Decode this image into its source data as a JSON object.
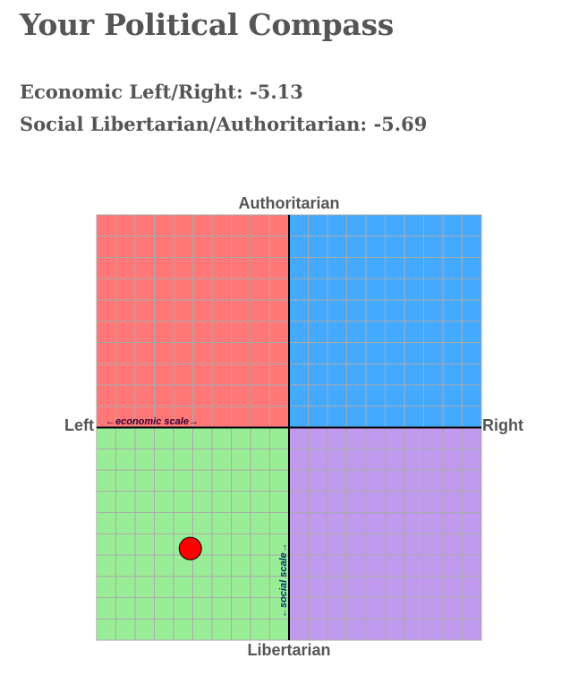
{
  "page": {
    "title": "Your Political Compass",
    "economic_label": "Economic Left/Right: -5.13",
    "social_label": "Social Libertarian/Authoritarian: -5.69"
  },
  "chart_data": {
    "type": "scatter",
    "title": "",
    "axes": {
      "top": "Authoritarian",
      "bottom": "Libertarian",
      "left": "Left",
      "right": "Right"
    },
    "economic_scale_label": "←economic scale→",
    "social_scale_label": "←social scale→",
    "xlim": [
      -10,
      10
    ],
    "ylim": [
      -10,
      10
    ],
    "grid": true,
    "grid_divisions": 20,
    "quadrants": {
      "authoritarian_left": "#ff7777",
      "authoritarian_right": "#44aaff",
      "libertarian_left": "#9aed97",
      "libertarian_right": "#c09aec"
    },
    "grid_color": "#aaaaaa",
    "axis_color": "#000000",
    "point_color": "#ff0000",
    "points": [
      {
        "x": -5.13,
        "y": -5.69
      }
    ]
  }
}
